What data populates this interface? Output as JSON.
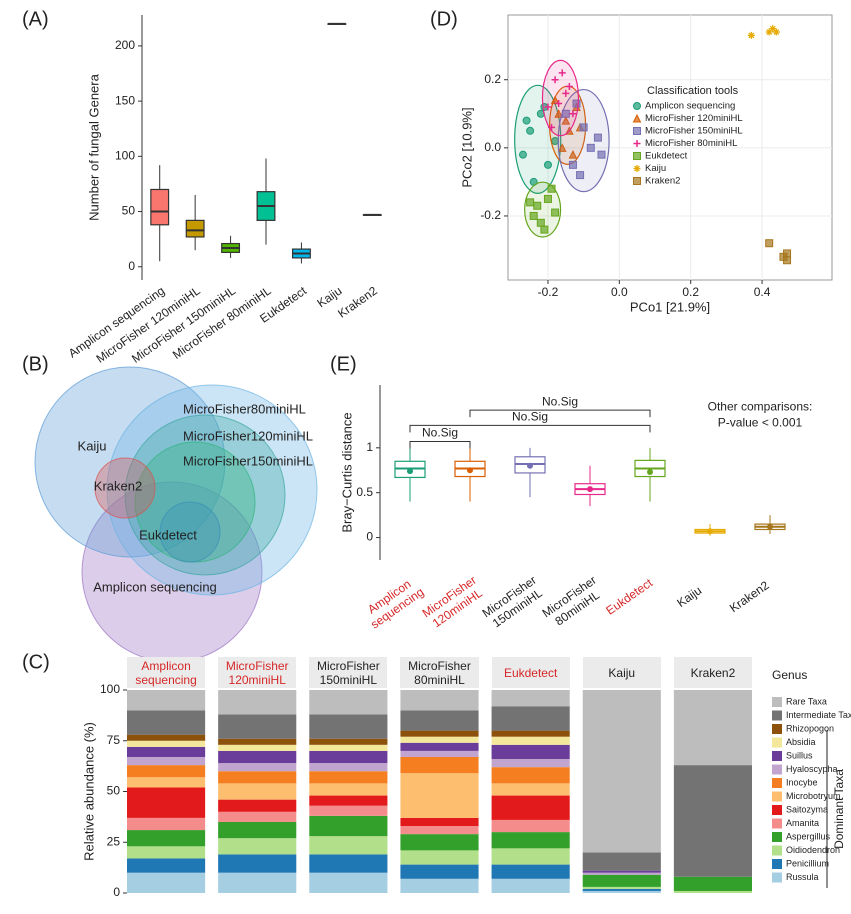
{
  "chart_data": [
    {
      "type": "box",
      "panel_label": "(A)",
      "ylabel": "Number of fungal Genera",
      "categories": [
        "Amplicon sequencing",
        "MicroFisher 120miniHL",
        "MicroFisher 150miniHL",
        "MicroFisher 80miniHL",
        "Eukdetect",
        "Kaiju",
        "Kraken2"
      ],
      "colors": [
        "#f8766d",
        "#c49a00",
        "#53b400",
        "#00c094",
        "#00b6eb",
        "#a58aff",
        "#fb61d7"
      ],
      "boxes": [
        {
          "min": 5,
          "q1": 38,
          "median": 50,
          "q3": 70,
          "max": 92
        },
        {
          "min": 15,
          "q1": 27,
          "median": 33,
          "q3": 42,
          "max": 65
        },
        {
          "min": 8,
          "q1": 13,
          "median": 17,
          "q3": 21,
          "max": 28
        },
        {
          "min": 20,
          "q1": 42,
          "median": 55,
          "q3": 68,
          "max": 98
        },
        {
          "min": 3,
          "q1": 8,
          "median": 12,
          "q3": 16,
          "max": 22
        },
        {
          "min": 220,
          "q1": 220,
          "median": 220,
          "q3": 220,
          "max": 220
        },
        {
          "min": 47,
          "q1": 47,
          "median": 47,
          "q3": 47,
          "max": 47
        }
      ],
      "ylim": [
        -12,
        228
      ],
      "yticks": [
        0,
        50,
        100,
        150,
        200
      ]
    },
    {
      "type": "scatter",
      "panel_label": "(D)",
      "xlabel": "PCo1 [21.9%]",
      "ylabel": "PCo2 [10.9%]",
      "legend_title": "Classification tools",
      "grid": true,
      "xlim": [
        -0.312,
        0.596
      ],
      "xticks": [
        -0.2,
        {
          "value": 0,
          "label": "0.0"
        },
        0.2,
        0.4
      ],
      "ylim": [
        -0.388,
        0.39
      ],
      "yticks": [
        -0.2,
        {
          "value": 0,
          "label": "0.0"
        },
        0.2
      ],
      "series": [
        {
          "name": "Amplicon sequencing",
          "color": "#1b9e77",
          "label_color": "#d62728",
          "marker": "circle",
          "x": [
            -0.25,
            -0.22,
            -0.2,
            -0.27,
            -0.18,
            -0.24,
            -0.21,
            -0.26
          ],
          "values": [
            0.05,
            0.1,
            -0.05,
            -0.02,
            0.02,
            -0.1,
            0.12,
            0.08
          ]
        },
        {
          "name": "MicroFisher 120miniHL",
          "color": "#d95f02",
          "label_color": "#d62728",
          "marker": "triangle",
          "x": [
            -0.17,
            -0.14,
            -0.12,
            -0.16,
            -0.13,
            -0.18,
            -0.11,
            -0.15
          ],
          "values": [
            0.1,
            0.05,
            0.12,
            0.0,
            -0.02,
            0.14,
            0.06,
            0.08
          ]
        },
        {
          "name": "MicroFisher 150miniHL",
          "color": "#7570b3",
          "label_color": "#222222",
          "marker": "square",
          "x": [
            -0.1,
            -0.08,
            -0.13,
            -0.06,
            -0.15,
            -0.11,
            -0.05,
            -0.12
          ],
          "values": [
            0.06,
            0.0,
            -0.05,
            0.03,
            0.1,
            -0.08,
            -0.02,
            0.13
          ]
        },
        {
          "name": "MicroFisher 80miniHL",
          "color": "#e7298a",
          "label_color": "#222222",
          "marker": "plus",
          "x": [
            -0.18,
            -0.15,
            -0.2,
            -0.16,
            -0.13,
            -0.19,
            -0.14,
            -0.17
          ],
          "values": [
            0.2,
            0.16,
            0.12,
            0.22,
            0.1,
            0.06,
            0.18,
            0.13
          ]
        },
        {
          "name": "Eukdetect",
          "color": "#66a61e",
          "label_color": "#d62728",
          "marker": "square",
          "x": [
            -0.24,
            -0.2,
            -0.22,
            -0.18,
            -0.25,
            -0.21,
            -0.19,
            -0.23
          ],
          "values": [
            -0.2,
            -0.15,
            -0.22,
            -0.19,
            -0.16,
            -0.24,
            -0.12,
            -0.17
          ]
        },
        {
          "name": "Kaiju",
          "color": "#e6ab02",
          "label_color": "#222222",
          "marker": "star",
          "x": [
            0.42,
            0.43,
            0.44,
            0.37
          ],
          "values": [
            0.34,
            0.35,
            0.34,
            0.33
          ]
        },
        {
          "name": "Kraken2",
          "color": "#a6761d",
          "label_color": "#222222",
          "marker": "square",
          "x": [
            0.46,
            0.47,
            0.47,
            0.42
          ],
          "values": [
            -0.32,
            -0.33,
            -0.31,
            -0.28
          ]
        }
      ]
    },
    {
      "type": "venn",
      "panel_label": "(B)",
      "sets": [
        {
          "label": "Kaiju",
          "color": "#5b9bd5"
        },
        {
          "label": "Kraken2",
          "color": "#d9534f"
        },
        {
          "label": "MicroFisher80miniHL",
          "color": "#6cb4e4"
        },
        {
          "label": "MicroFisher120miniHL",
          "color": "#3aa6a0"
        },
        {
          "label": "MicroFisher150miniHL",
          "color": "#2fb37f"
        },
        {
          "label": "Eukdetect",
          "color": "#3a8fb7"
        },
        {
          "label": "Amplicon sequencing",
          "color": "#9b72c4"
        }
      ]
    },
    {
      "type": "box",
      "panel_label": "(E)",
      "ylabel": "Bray−Curtis distance",
      "box_fill": "#ffffff",
      "categories": [
        "Amplicon sequencing",
        "MicroFisher 120miniHL",
        "MicroFisher 150miniHL",
        "MicroFisher 80miniHL",
        "Eukdetect",
        "Kaiju",
        "Kraken2"
      ],
      "category_colors": [
        "#d62728",
        "#d62728",
        "#222222",
        "#222222",
        "#d62728",
        "#222222",
        "#222222"
      ],
      "colors": [
        "#1b9e77",
        "#d95f02",
        "#7570b3",
        "#e7298a",
        "#66a61e",
        "#e6ab02",
        "#a6761d"
      ],
      "boxes": [
        {
          "min": 0.4,
          "q1": 0.67,
          "median": 0.77,
          "q3": 0.85,
          "max": 1.0
        },
        {
          "min": 0.4,
          "q1": 0.68,
          "median": 0.77,
          "q3": 0.85,
          "max": 1.0
        },
        {
          "min": 0.45,
          "q1": 0.72,
          "median": 0.82,
          "q3": 0.9,
          "max": 1.0
        },
        {
          "min": 0.35,
          "q1": 0.48,
          "median": 0.54,
          "q3": 0.6,
          "max": 0.8
        },
        {
          "min": 0.4,
          "q1": 0.68,
          "median": 0.77,
          "q3": 0.86,
          "max": 1.0
        },
        {
          "min": 0.02,
          "q1": 0.05,
          "median": 0.07,
          "q3": 0.09,
          "max": 0.15
        },
        {
          "min": 0.04,
          "q1": 0.09,
          "median": 0.12,
          "q3": 0.15,
          "max": 0.25
        }
      ],
      "means": [
        0.74,
        0.75,
        0.8,
        0.54,
        0.73,
        0.07,
        0.12
      ],
      "annotations": [
        "No.Sig",
        "No.Sig",
        "No.Sig"
      ],
      "note": [
        "Other comparisons:",
        "P-value < 0.001"
      ],
      "ylim": [
        -0.25,
        1.7
      ],
      "yticks": [
        0,
        0.5,
        1
      ]
    },
    {
      "type": "stacked_bar",
      "panel_label": "(C)",
      "ylabel": "Relative abundance (%)",
      "legend_title": "Genus",
      "legend_group": "Dominant Taxa",
      "categories": [
        "Amplicon sequencing",
        "MicroFisher 120miniHL",
        "MicroFisher 150miniHL",
        "MicroFisher 80miniHL",
        "Eukdetect",
        "Kaiju",
        "Kraken2"
      ],
      "category_colors": [
        "#d62728",
        "#d62728",
        "#222222",
        "#222222",
        "#d62728",
        "#222222",
        "#222222"
      ],
      "ylim": [
        0,
        100
      ],
      "yticks": [
        0,
        25,
        50,
        75,
        100
      ],
      "series": [
        {
          "name": "Rare Taxa",
          "color": "#bdbdbd",
          "values": [
            10,
            12,
            12,
            10,
            8,
            80,
            37
          ]
        },
        {
          "name": "Intermediate Taxa",
          "color": "#737373",
          "values": [
            12,
            12,
            12,
            10,
            12,
            9,
            55
          ]
        },
        {
          "name": "Rhizopogon",
          "color": "#8c510a",
          "values": [
            3,
            3,
            3,
            3,
            3,
            0,
            0
          ]
        },
        {
          "name": "Absidia",
          "color": "#f3e79b",
          "values": [
            3,
            3,
            3,
            3,
            4,
            0,
            0
          ]
        },
        {
          "name": "Suillus",
          "color": "#6a3d9a",
          "values": [
            5,
            6,
            6,
            4,
            7,
            1,
            0
          ]
        },
        {
          "name": "Hyaloscypha",
          "color": "#c2a5cf",
          "values": [
            4,
            4,
            4,
            3,
            4,
            1,
            0
          ]
        },
        {
          "name": "Inocybe",
          "color": "#f57f20",
          "values": [
            6,
            6,
            6,
            8,
            8,
            0,
            0
          ]
        },
        {
          "name": "Microbotryum",
          "color": "#fdbf6f",
          "values": [
            5,
            8,
            6,
            22,
            6,
            0,
            0
          ]
        },
        {
          "name": "Saitozyma",
          "color": "#e31a1c",
          "values": [
            15,
            6,
            5,
            4,
            12,
            0,
            0
          ]
        },
        {
          "name": "Amanita",
          "color": "#f48c8c",
          "values": [
            6,
            5,
            5,
            4,
            6,
            0,
            0
          ]
        },
        {
          "name": "Aspergillus",
          "color": "#33a02c",
          "values": [
            8,
            8,
            10,
            8,
            8,
            6,
            7
          ]
        },
        {
          "name": "Oidiodendron",
          "color": "#b2df8a",
          "values": [
            6,
            8,
            9,
            7,
            8,
            1,
            1
          ]
        },
        {
          "name": "Penicillium",
          "color": "#1f78b4",
          "values": [
            7,
            9,
            9,
            7,
            7,
            1,
            0
          ]
        },
        {
          "name": "Russula",
          "color": "#a6cee3",
          "values": [
            10,
            10,
            10,
            7,
            7,
            1,
            0
          ]
        }
      ]
    }
  ]
}
